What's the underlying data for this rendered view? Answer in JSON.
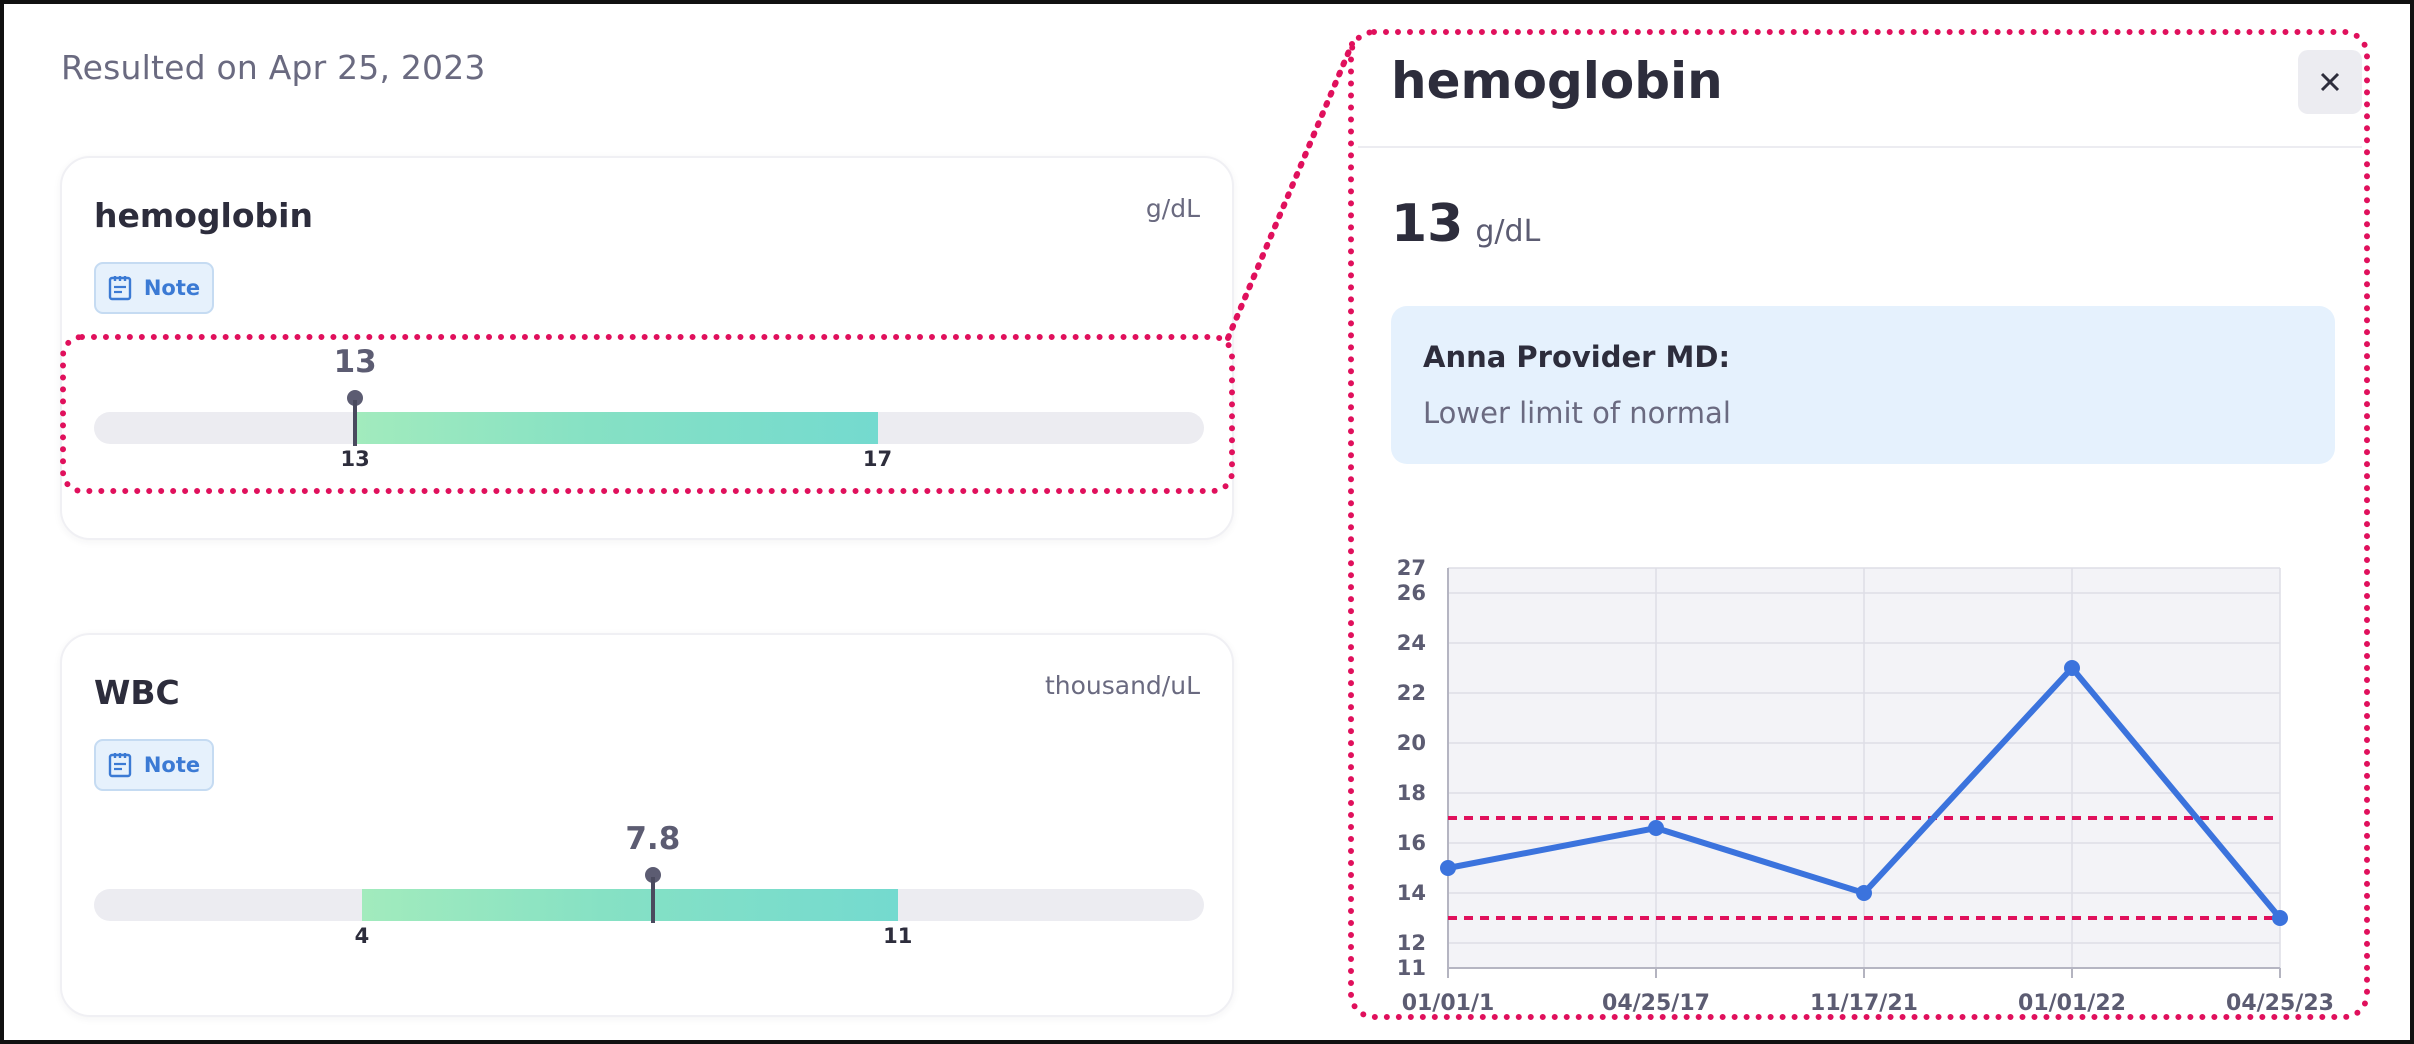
{
  "resulted_label": "Resulted on Apr 25, 2023",
  "cards": [
    {
      "title": "hemoglobin",
      "unit": "g/dL",
      "note_label": "Note",
      "value": 13,
      "value_label": "13",
      "range_low": 13,
      "range_high": 17,
      "range_low_label": "13",
      "range_high_label": "17",
      "scale_min": 11,
      "scale_max": 19.5
    },
    {
      "title": "WBC",
      "unit": "thousand/uL",
      "note_label": "Note",
      "value": 7.8,
      "value_label": "7.8",
      "range_low": 4,
      "range_high": 11,
      "range_low_label": "4",
      "range_high_label": "11",
      "scale_min": 0.5,
      "scale_max": 15
    }
  ],
  "panel": {
    "title": "hemoglobin",
    "close_icon": "close-icon",
    "value": "13",
    "unit": "g/dL",
    "note_author": "Anna Provider MD:",
    "note_text": "Lower limit of normal"
  },
  "colors": {
    "highlight": "#e0105c",
    "line": "#3b73dd",
    "reference": "#e0105c",
    "range_fill_start": "#a2ebbd",
    "range_fill_end": "#74dacf"
  },
  "chart_data": {
    "type": "line",
    "title": "",
    "xlabel": "",
    "ylabel": "",
    "categories": [
      "01/01/1",
      "04/25/17",
      "11/17/21",
      "01/01/22",
      "04/25/23"
    ],
    "series": [
      {
        "values": [
          15,
          16.6,
          14,
          23,
          13
        ]
      }
    ],
    "reference_lines": [
      17,
      13
    ],
    "yticks": [
      11,
      12,
      14,
      16,
      18,
      20,
      22,
      24,
      26,
      27
    ],
    "ylim": [
      11,
      27
    ],
    "grid": true
  }
}
